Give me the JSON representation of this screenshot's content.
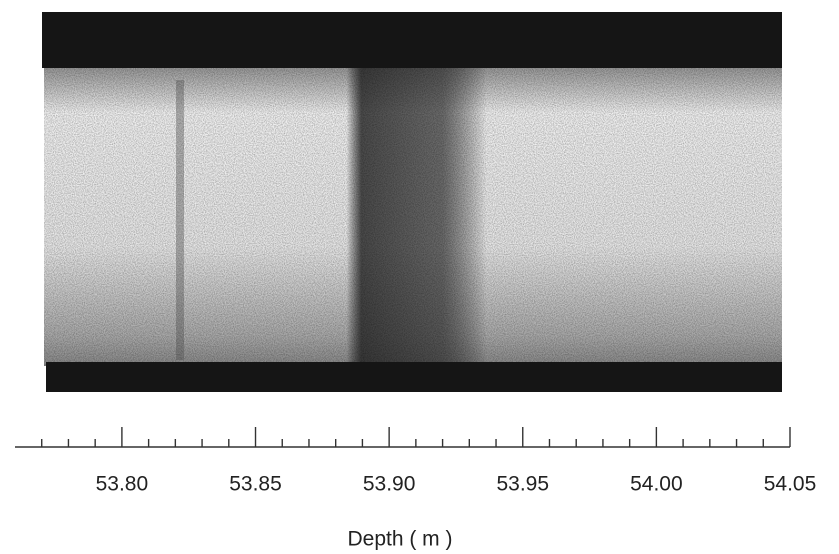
{
  "chart_data": {
    "type": "image-strip",
    "xlabel": "Depth ( m )",
    "xlim": [
      53.76,
      54.05
    ],
    "xticks": [
      {
        "value": 53.8,
        "label": "53.80"
      },
      53.85,
      {
        "value": 53.9,
        "label": "53.90"
      },
      53.95,
      {
        "value": 54.0,
        "label": "54.00"
      },
      54.05
    ],
    "xminorticks": [
      53.77,
      53.78,
      53.79,
      53.81,
      53.82,
      53.83,
      53.84,
      53.86,
      53.87,
      53.88,
      53.89,
      53.91,
      53.92,
      53.93,
      53.94,
      53.96,
      53.97,
      53.98,
      53.99,
      54.01,
      54.02,
      54.03,
      54.04
    ]
  }
}
